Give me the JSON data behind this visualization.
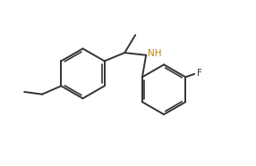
{
  "bg_color": "#ffffff",
  "bond_color": "#333333",
  "nh_color": "#b8860b",
  "f_color": "#333333",
  "line_width": 1.4,
  "figsize": [
    2.86,
    1.86
  ],
  "dpi": 100,
  "xlim": [
    0,
    10
  ],
  "ylim": [
    0,
    7
  ]
}
